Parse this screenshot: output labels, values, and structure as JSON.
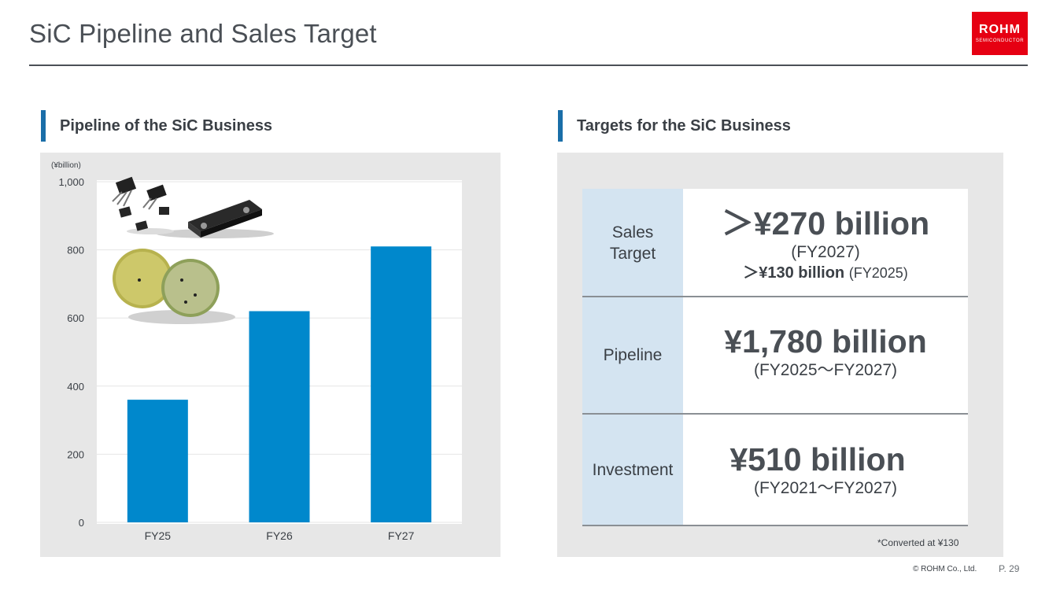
{
  "page": {
    "title": "SiC Pipeline and Sales Target",
    "logo_main": "ROHM",
    "logo_sub": "SEMICONDUCTOR",
    "copyright": "© ROHM Co., Ltd.",
    "page_number": "P. 29"
  },
  "left_section": {
    "heading": "Pipeline of the SiC Business"
  },
  "right_section": {
    "heading": "Targets for the SiC Business",
    "rows": [
      {
        "label": "Sales\nTarget",
        "value": "＞¥270 billion",
        "period": "(FY2027)",
        "extra_value": "＞¥130 billion",
        "extra_period": "(FY2025)"
      },
      {
        "label": "Pipeline",
        "value": "¥1,780 billion",
        "period": "(FY2025～FY2027)"
      },
      {
        "label": "Investment",
        "value": "¥510 billion",
        "period": "(FY2021～FY2027)"
      }
    ],
    "note": "*Converted at ¥130"
  },
  "chart_data": {
    "type": "bar",
    "categories": [
      "FY25",
      "FY26",
      "FY27"
    ],
    "values": [
      360,
      620,
      810
    ],
    "unit_label": "(¥billion)",
    "ylim": [
      0,
      1000
    ],
    "yticks": [
      0,
      200,
      400,
      600,
      800,
      1000
    ],
    "ytick_labels": [
      "0",
      "200",
      "400",
      "600",
      "800",
      "1,000"
    ],
    "grid": true,
    "bar_color": "#0088cc"
  },
  "colors": {
    "accent_bar": "#1a6ea8",
    "logo_red": "#e60012",
    "label_cell": "#d4e4f1",
    "panel_bg": "#e7e7e7"
  },
  "icons": {
    "product_images": "sic-chip-and-module-icon",
    "wafer_images": "sic-wafer-icon"
  }
}
